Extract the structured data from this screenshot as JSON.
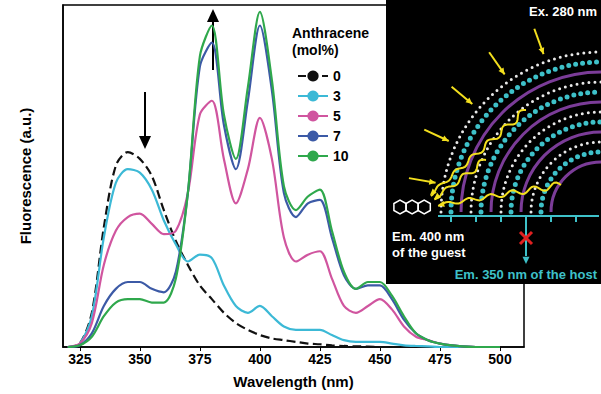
{
  "chart_data": {
    "type": "line",
    "x_label": "Wavelength (nm)",
    "y_label": "Fluorescence (a.u.)",
    "legend_title": [
      "Anthracene",
      "(mol%)"
    ],
    "legend": "top-right",
    "grid": false,
    "tick_labels": "x",
    "xlim": [
      318,
      510
    ],
    "xticks": [
      325,
      350,
      375,
      400,
      425,
      450,
      475,
      500
    ],
    "ylim": [
      0,
      100
    ],
    "x": [
      320,
      325,
      330,
      335,
      340,
      345,
      350,
      355,
      360,
      365,
      370,
      375,
      380,
      385,
      390,
      395,
      400,
      405,
      410,
      415,
      420,
      425,
      430,
      435,
      440,
      445,
      450,
      455,
      460,
      465,
      470,
      475,
      480,
      490,
      500
    ],
    "series": [
      {
        "name": "0",
        "color": "#111111",
        "line_style": "dashed",
        "values": [
          0,
          1,
          10,
          35,
          53,
          57,
          55,
          50,
          40,
          31,
          24,
          18,
          14,
          10,
          7,
          5,
          3.5,
          2.5,
          2,
          1.5,
          1,
          0.8,
          0.5,
          0.3,
          0.2,
          0.1,
          0,
          0,
          0,
          0,
          0,
          0,
          0,
          0,
          0
        ]
      },
      {
        "name": "3",
        "color": "#3cb9d6",
        "line_style": "solid",
        "values": [
          0,
          1,
          9,
          32,
          48,
          52,
          51,
          46,
          37,
          30,
          25,
          27,
          26,
          18,
          12,
          10,
          12,
          9,
          6,
          5,
          5,
          5,
          3.5,
          2,
          1.5,
          1.5,
          1.5,
          1,
          0.5,
          0.3,
          0.2,
          0,
          0,
          0,
          0
        ]
      },
      {
        "name": "5",
        "color": "#d0559f",
        "line_style": "solid",
        "values": [
          0,
          1,
          7,
          24,
          34,
          38,
          39,
          36,
          33,
          34,
          45,
          68,
          72,
          55,
          42,
          52,
          67,
          55,
          32,
          25,
          27,
          28,
          20,
          12,
          10,
          12,
          14,
          11,
          6,
          3,
          2,
          1,
          0.5,
          0,
          0
        ]
      },
      {
        "name": "7",
        "color": "#3c5aa6",
        "line_style": "solid",
        "values": [
          0,
          0.5,
          4,
          12,
          17,
          19,
          19,
          17,
          16,
          22,
          45,
          82,
          89,
          65,
          52,
          72,
          94,
          75,
          45,
          38,
          42,
          43,
          32,
          21,
          17,
          18,
          18,
          14,
          8,
          4,
          2,
          1,
          0.5,
          0,
          0
        ]
      },
      {
        "name": "10",
        "color": "#2fa84c",
        "line_style": "solid",
        "values": [
          0,
          0.5,
          3,
          9,
          13,
          14,
          14,
          13,
          13,
          20,
          45,
          85,
          94,
          68,
          55,
          76,
          98,
          78,
          47,
          40,
          44,
          46,
          34,
          22,
          17,
          19,
          19,
          15,
          9,
          4,
          2,
          1,
          0.5,
          0,
          0
        ]
      }
    ],
    "annotations": [
      "Ex. 280 nm",
      "Em. 400 nm",
      "of the guest",
      "Em. 350 nm of the host"
    ]
  }
}
